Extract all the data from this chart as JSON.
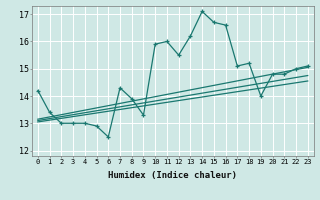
{
  "title": "",
  "xlabel": "Humidex (Indice chaleur)",
  "ylabel": "",
  "background_color": "#cfe8e5",
  "grid_color": "#ffffff",
  "line_color": "#1a7870",
  "xlim": [
    -0.5,
    23.5
  ],
  "ylim": [
    11.8,
    17.3
  ],
  "yticks": [
    12,
    13,
    14,
    15,
    16,
    17
  ],
  "xticks": [
    0,
    1,
    2,
    3,
    4,
    5,
    6,
    7,
    8,
    9,
    10,
    11,
    12,
    13,
    14,
    15,
    16,
    17,
    18,
    19,
    20,
    21,
    22,
    23
  ],
  "series1_x": [
    0,
    1,
    2,
    3,
    4,
    5,
    6,
    7,
    8,
    9,
    10,
    11,
    12,
    13,
    14,
    15,
    16,
    17,
    18,
    19,
    20,
    21,
    22,
    23
  ],
  "series1_y": [
    14.2,
    13.4,
    13.0,
    13.0,
    13.0,
    12.9,
    12.5,
    14.3,
    13.9,
    13.3,
    15.9,
    16.0,
    15.5,
    16.2,
    17.1,
    16.7,
    16.6,
    15.1,
    15.2,
    14.0,
    14.8,
    14.8,
    15.0,
    15.1
  ],
  "series2_x": [
    0,
    23
  ],
  "series2_y": [
    13.05,
    14.55
  ],
  "series3_x": [
    0,
    23
  ],
  "series3_y": [
    13.1,
    14.75
  ],
  "series4_x": [
    0,
    23
  ],
  "series4_y": [
    13.15,
    15.05
  ]
}
